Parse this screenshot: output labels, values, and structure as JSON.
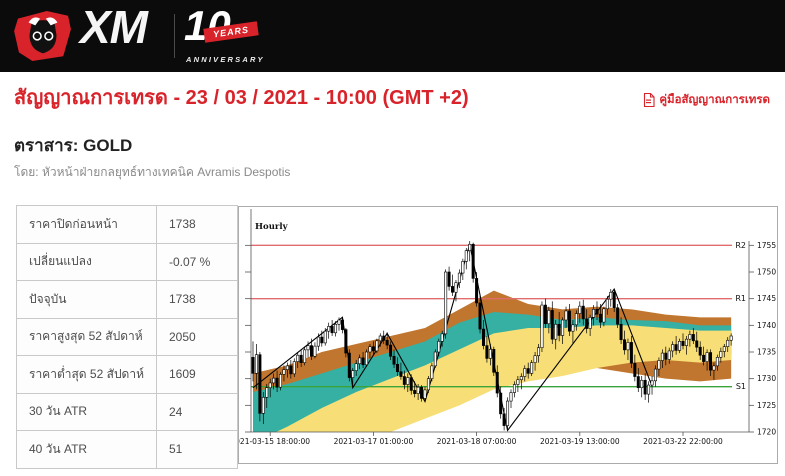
{
  "header": {
    "brand": "XM",
    "anniversary_number": "10",
    "anniversary_years": "YEARS",
    "anniversary_label": "ANNIVERSARY"
  },
  "page": {
    "title": "สัญญาณการเทรด - 23 / 03 / 2021 - 10:00 (GMT +2)",
    "manual_link": "คู่มือสัญญาณการเทรด",
    "instrument_label": "ตราสาร: GOLD",
    "byline": "โดย: หัวหน้าฝ่ายกลยุทธ์ทางเทคนิค Avramis Despotis"
  },
  "stats_table": {
    "rows": [
      {
        "label": "ราคาปิดก่อนหน้า",
        "value": "1738"
      },
      {
        "label": "เปลี่ยนแปลง",
        "value": "-0.07 %"
      },
      {
        "label": "ปัจจุบัน",
        "value": "1738"
      },
      {
        "label": "ราคาสูงสุด 52 สัปดาห์",
        "value": "2050"
      },
      {
        "label": "ราคาต่ำสุด 52 สัปดาห์",
        "value": "1609"
      },
      {
        "label": "30 วัน ATR",
        "value": "24"
      },
      {
        "label": "40 วัน ATR",
        "value": "51"
      }
    ]
  },
  "colors": {
    "accent_red": "#d8232a",
    "resistance_line": "#e06c6c",
    "support_line": "#3aa33a",
    "band_yellow": "#f7de76",
    "band_teal": "#35b0a2",
    "band_brown": "#c0762e"
  },
  "chart_data": {
    "type": "candlestick",
    "title": "Hourly",
    "ohlc_format": "[open,high,low,close]",
    "x_tick_labels": [
      "2021-03-15 18:00:00",
      "2021-03-17 01:00:00",
      "2021-03-18 07:00:00",
      "2021-03-19 13:00:00",
      "2021-03-22 22:00:00"
    ],
    "x_tick_indices": [
      5,
      35,
      65,
      95,
      125
    ],
    "y_ticks": [
      1720,
      1725,
      1730,
      1735,
      1740,
      1745,
      1750,
      1755
    ],
    "ylim": [
      1720,
      1761
    ],
    "legend_position": "none",
    "grid": false,
    "levels": [
      {
        "label": "R2",
        "value": 1755,
        "color": "#e06c6c"
      },
      {
        "label": "R1",
        "value": 1745,
        "color": "#e06c6c"
      },
      {
        "label": "S1",
        "value": 1728.5,
        "color": "#3aa33a"
      }
    ],
    "zigzag": [
      [
        0,
        1728.3
      ],
      [
        26,
        1741.5
      ],
      [
        29,
        1728.3
      ],
      [
        39,
        1738.5
      ],
      [
        50,
        1725.7
      ],
      [
        63,
        1755.2
      ],
      [
        74,
        1720.3
      ],
      [
        105,
        1746.8
      ],
      [
        116,
        1728.6
      ]
    ],
    "bands": [
      {
        "name": "envelope-fast",
        "color": "#c0762e",
        "points": [
          [
            0,
            1721,
            1731
          ],
          [
            10,
            1724,
            1732.5
          ],
          [
            20,
            1726.5,
            1735
          ],
          [
            30,
            1728.5,
            1736.5
          ],
          [
            40,
            1730,
            1738
          ],
          [
            50,
            1731.5,
            1739.5
          ],
          [
            60,
            1734,
            1743
          ],
          [
            70,
            1737,
            1746.5
          ],
          [
            80,
            1733,
            1744
          ],
          [
            90,
            1731.5,
            1743
          ],
          [
            100,
            1732,
            1743.5
          ],
          [
            110,
            1731,
            1743
          ],
          [
            120,
            1730,
            1742
          ],
          [
            130,
            1729.5,
            1741.5
          ],
          [
            139,
            1730,
            1741.5
          ]
        ]
      },
      {
        "name": "envelope-medium",
        "color": "#35b0a2",
        "points": [
          [
            0,
            1716.5,
            1727.5
          ],
          [
            10,
            1719.5,
            1729
          ],
          [
            20,
            1722.5,
            1731
          ],
          [
            30,
            1725,
            1733
          ],
          [
            40,
            1727,
            1735
          ],
          [
            50,
            1729,
            1737
          ],
          [
            60,
            1732,
            1740.5
          ],
          [
            70,
            1735.5,
            1742.5
          ],
          [
            80,
            1734.5,
            1742
          ],
          [
            90,
            1733.5,
            1741
          ],
          [
            100,
            1734.5,
            1741.5
          ],
          [
            110,
            1734.5,
            1741
          ],
          [
            120,
            1734.5,
            1740.8
          ],
          [
            130,
            1734,
            1740
          ],
          [
            139,
            1734.5,
            1740
          ]
        ]
      },
      {
        "name": "envelope-slow",
        "color": "#f7de76",
        "points": [
          [
            0,
            1708,
            1718
          ],
          [
            10,
            1711,
            1721
          ],
          [
            20,
            1714,
            1724.5
          ],
          [
            30,
            1717,
            1727.5
          ],
          [
            40,
            1720,
            1730
          ],
          [
            50,
            1722.5,
            1732.5
          ],
          [
            60,
            1725,
            1735.5
          ],
          [
            70,
            1728,
            1738.5
          ],
          [
            80,
            1729.5,
            1739.5
          ],
          [
            90,
            1730.5,
            1739.5
          ],
          [
            100,
            1732,
            1740
          ],
          [
            110,
            1733,
            1740
          ],
          [
            120,
            1733.5,
            1739.5
          ],
          [
            130,
            1733,
            1739
          ],
          [
            139,
            1733.5,
            1739
          ]
        ]
      }
    ],
    "candles": [
      [
        1734,
        1737,
        1729.5,
        1731
      ],
      [
        1731,
        1736.5,
        1728,
        1734.5
      ],
      [
        1734.5,
        1735,
        1722,
        1723.5
      ],
      [
        1723.5,
        1727.5,
        1721.5,
        1726.5
      ],
      [
        1726.5,
        1729,
        1724.5,
        1728.3
      ],
      [
        1728.3,
        1730,
        1726.5,
        1729.2
      ],
      [
        1729.2,
        1731,
        1728,
        1730.1
      ],
      [
        1730.1,
        1731.5,
        1727.5,
        1728.4
      ],
      [
        1728.4,
        1731.2,
        1727.8,
        1730.8
      ],
      [
        1730.8,
        1732.5,
        1729.5,
        1731.7
      ],
      [
        1731.7,
        1733,
        1730.2,
        1732.4
      ],
      [
        1732.4,
        1733.5,
        1730,
        1730.9
      ],
      [
        1730.9,
        1733.8,
        1730.3,
        1733.2
      ],
      [
        1733.2,
        1735,
        1732,
        1734.4
      ],
      [
        1734.4,
        1735.5,
        1732.2,
        1733
      ],
      [
        1733,
        1736,
        1732.5,
        1735.4
      ],
      [
        1735.4,
        1737,
        1734,
        1736.2
      ],
      [
        1736.2,
        1737.5,
        1733.5,
        1734.2
      ],
      [
        1734.2,
        1736.8,
        1733.8,
        1736.1
      ],
      [
        1736.1,
        1738.5,
        1735.2,
        1737.8
      ],
      [
        1737.8,
        1739,
        1736,
        1736.7
      ],
      [
        1736.7,
        1739.5,
        1736.2,
        1738.9
      ],
      [
        1738.9,
        1740.5,
        1737.5,
        1739.8
      ],
      [
        1739.8,
        1741,
        1738,
        1738.6
      ],
      [
        1738.6,
        1740.8,
        1737.9,
        1740.2
      ],
      [
        1740.2,
        1741.5,
        1739,
        1741
      ],
      [
        1741,
        1741.5,
        1738.5,
        1739.2
      ],
      [
        1739.2,
        1739.5,
        1734,
        1734.8
      ],
      [
        1734.8,
        1735.5,
        1729.5,
        1730.2
      ],
      [
        1730.2,
        1732,
        1728.3,
        1731.5
      ],
      [
        1731.5,
        1733.5,
        1730.5,
        1732.8
      ],
      [
        1732.8,
        1734.5,
        1731.8,
        1733.9
      ],
      [
        1733.9,
        1735,
        1732,
        1732.6
      ],
      [
        1732.6,
        1735.5,
        1732.2,
        1735
      ],
      [
        1735,
        1736.5,
        1733.8,
        1736
      ],
      [
        1736,
        1737,
        1734.5,
        1735.2
      ],
      [
        1735.2,
        1737.5,
        1734.8,
        1737.1
      ],
      [
        1737.1,
        1738.5,
        1736,
        1738
      ],
      [
        1738,
        1739,
        1736.5,
        1737.2
      ],
      [
        1737.2,
        1738.7,
        1735.5,
        1736.3
      ],
      [
        1736.3,
        1737,
        1733.5,
        1734.2
      ],
      [
        1734.2,
        1735.5,
        1732,
        1732.7
      ],
      [
        1732.7,
        1734,
        1730.5,
        1731.3
      ],
      [
        1731.3,
        1733,
        1729.8,
        1730.4
      ],
      [
        1730.4,
        1731.5,
        1728,
        1728.9
      ],
      [
        1728.9,
        1731,
        1727.5,
        1730.2
      ],
      [
        1730.2,
        1730.8,
        1727,
        1727.8
      ],
      [
        1727.8,
        1729.5,
        1726.5,
        1727.2
      ],
      [
        1727.2,
        1729,
        1726,
        1728.4
      ],
      [
        1728.4,
        1728.8,
        1725.7,
        1726.3
      ],
      [
        1726.3,
        1728.5,
        1725.7,
        1727.9
      ],
      [
        1727.9,
        1730.5,
        1727.3,
        1730
      ],
      [
        1730,
        1733,
        1729.5,
        1732.4
      ],
      [
        1732.4,
        1735.5,
        1732,
        1735
      ],
      [
        1735,
        1737.5,
        1734.2,
        1737
      ],
      [
        1737,
        1739,
        1736,
        1738.4
      ],
      [
        1738.4,
        1750.5,
        1737.5,
        1750
      ],
      [
        1750,
        1751,
        1746.5,
        1747.3
      ],
      [
        1747.3,
        1749.5,
        1745.5,
        1746.2
      ],
      [
        1746.2,
        1748.5,
        1744.5,
        1748
      ],
      [
        1748,
        1750.5,
        1747,
        1749.8
      ],
      [
        1749.8,
        1752.5,
        1748.5,
        1752
      ],
      [
        1752,
        1754.5,
        1750.5,
        1754
      ],
      [
        1754,
        1755.8,
        1752,
        1755.2
      ],
      [
        1755.2,
        1755.5,
        1748,
        1748.8
      ],
      [
        1748.8,
        1750,
        1743.5,
        1744.2
      ],
      [
        1744.2,
        1745.5,
        1738.5,
        1739.3
      ],
      [
        1739.3,
        1741,
        1735.5,
        1736.2
      ],
      [
        1736.2,
        1738,
        1733,
        1733.8
      ],
      [
        1733.8,
        1736.5,
        1732.5,
        1735.5
      ],
      [
        1735.5,
        1736,
        1730.5,
        1731.2
      ],
      [
        1731.2,
        1732.5,
        1726.5,
        1727.3
      ],
      [
        1727.3,
        1728.5,
        1722.5,
        1723.4
      ],
      [
        1723.4,
        1724.5,
        1720.3,
        1721.2
      ],
      [
        1721.2,
        1726.5,
        1720.3,
        1725.8
      ],
      [
        1725.8,
        1728,
        1724.5,
        1727.4
      ],
      [
        1727.4,
        1729.5,
        1726.5,
        1728.9
      ],
      [
        1728.9,
        1730.5,
        1727.5,
        1729.8
      ],
      [
        1729.8,
        1731,
        1728,
        1730.4
      ],
      [
        1730.4,
        1732.5,
        1729.5,
        1731.9
      ],
      [
        1731.9,
        1733,
        1730,
        1731
      ],
      [
        1731,
        1733.5,
        1730.5,
        1733
      ],
      [
        1733,
        1735,
        1731.5,
        1734.3
      ],
      [
        1734.3,
        1736.5,
        1733,
        1735.8
      ],
      [
        1735.8,
        1744.5,
        1735,
        1743.8
      ],
      [
        1743.8,
        1745,
        1739.5,
        1740.3
      ],
      [
        1740.3,
        1743.5,
        1738.5,
        1742.8
      ],
      [
        1742.8,
        1744.5,
        1736.5,
        1737.4
      ],
      [
        1737.4,
        1741,
        1735.5,
        1740.2
      ],
      [
        1740.2,
        1742.5,
        1737,
        1738.1
      ],
      [
        1738.1,
        1741.5,
        1736.5,
        1741
      ],
      [
        1741,
        1743.5,
        1739.5,
        1742.7
      ],
      [
        1742.7,
        1744,
        1738,
        1738.9
      ],
      [
        1738.9,
        1741,
        1736.5,
        1740.1
      ],
      [
        1740.1,
        1742.8,
        1739,
        1742.2
      ],
      [
        1742.2,
        1744.5,
        1740.5,
        1743.6
      ],
      [
        1743.6,
        1744.8,
        1740,
        1741.2
      ],
      [
        1741.2,
        1743,
        1738.5,
        1739.4
      ],
      [
        1739.4,
        1742,
        1738,
        1741.5
      ],
      [
        1741.5,
        1743.8,
        1740,
        1743
      ],
      [
        1743,
        1744.5,
        1741,
        1742.1
      ],
      [
        1742.1,
        1744,
        1739.5,
        1740.6
      ],
      [
        1740.6,
        1743.5,
        1739.8,
        1743.1
      ],
      [
        1743.1,
        1745.5,
        1742,
        1744.9
      ],
      [
        1744.9,
        1746.8,
        1743.5,
        1746.2
      ],
      [
        1746.2,
        1746.8,
        1742.5,
        1743.3
      ],
      [
        1743.3,
        1744,
        1739.5,
        1740.2
      ],
      [
        1740.2,
        1741.5,
        1736.5,
        1737.3
      ],
      [
        1737.3,
        1739,
        1734.5,
        1735.4
      ],
      [
        1735.4,
        1737.5,
        1733.5,
        1736.8
      ],
      [
        1736.8,
        1738,
        1732,
        1732.9
      ],
      [
        1732.9,
        1734.5,
        1729.5,
        1730.4
      ],
      [
        1730.4,
        1732,
        1727.5,
        1728.3
      ],
      [
        1728.3,
        1730.5,
        1726.5,
        1729.7
      ],
      [
        1729.7,
        1731,
        1726,
        1727.1
      ],
      [
        1727.1,
        1729.5,
        1725.5,
        1728.8
      ],
      [
        1728.8,
        1730.5,
        1727,
        1729.6
      ],
      [
        1729.6,
        1732.5,
        1728.5,
        1731.8
      ],
      [
        1731.8,
        1734,
        1730.5,
        1733.4
      ],
      [
        1733.4,
        1735.5,
        1732,
        1734.8
      ],
      [
        1734.8,
        1736,
        1732.5,
        1733.6
      ],
      [
        1733.6,
        1735.8,
        1732.8,
        1735.2
      ],
      [
        1735.2,
        1737,
        1734,
        1736.4
      ],
      [
        1736.4,
        1738,
        1734.5,
        1735.3
      ],
      [
        1735.3,
        1737.5,
        1734.8,
        1737
      ],
      [
        1737,
        1738.5,
        1735.5,
        1736.2
      ],
      [
        1736.2,
        1738,
        1734.5,
        1737.4
      ],
      [
        1737.4,
        1739,
        1736,
        1738.3
      ],
      [
        1738.3,
        1739.5,
        1736.5,
        1737.1
      ],
      [
        1737.1,
        1738.8,
        1735,
        1735.9
      ],
      [
        1735.9,
        1737,
        1733.5,
        1734.4
      ],
      [
        1734.4,
        1736,
        1732.5,
        1733.2
      ],
      [
        1733.2,
        1735.5,
        1731.5,
        1734.9
      ],
      [
        1734.9,
        1735.5,
        1730.5,
        1731.6
      ],
      [
        1731.6,
        1733,
        1729.8,
        1732.4
      ],
      [
        1732.4,
        1734.5,
        1731.5,
        1734
      ],
      [
        1734,
        1735.8,
        1733,
        1735.1
      ],
      [
        1735.1,
        1736.5,
        1734,
        1736
      ],
      [
        1736,
        1737.8,
        1735,
        1737.2
      ],
      [
        1737.2,
        1738.5,
        1736.2,
        1738
      ]
    ]
  }
}
